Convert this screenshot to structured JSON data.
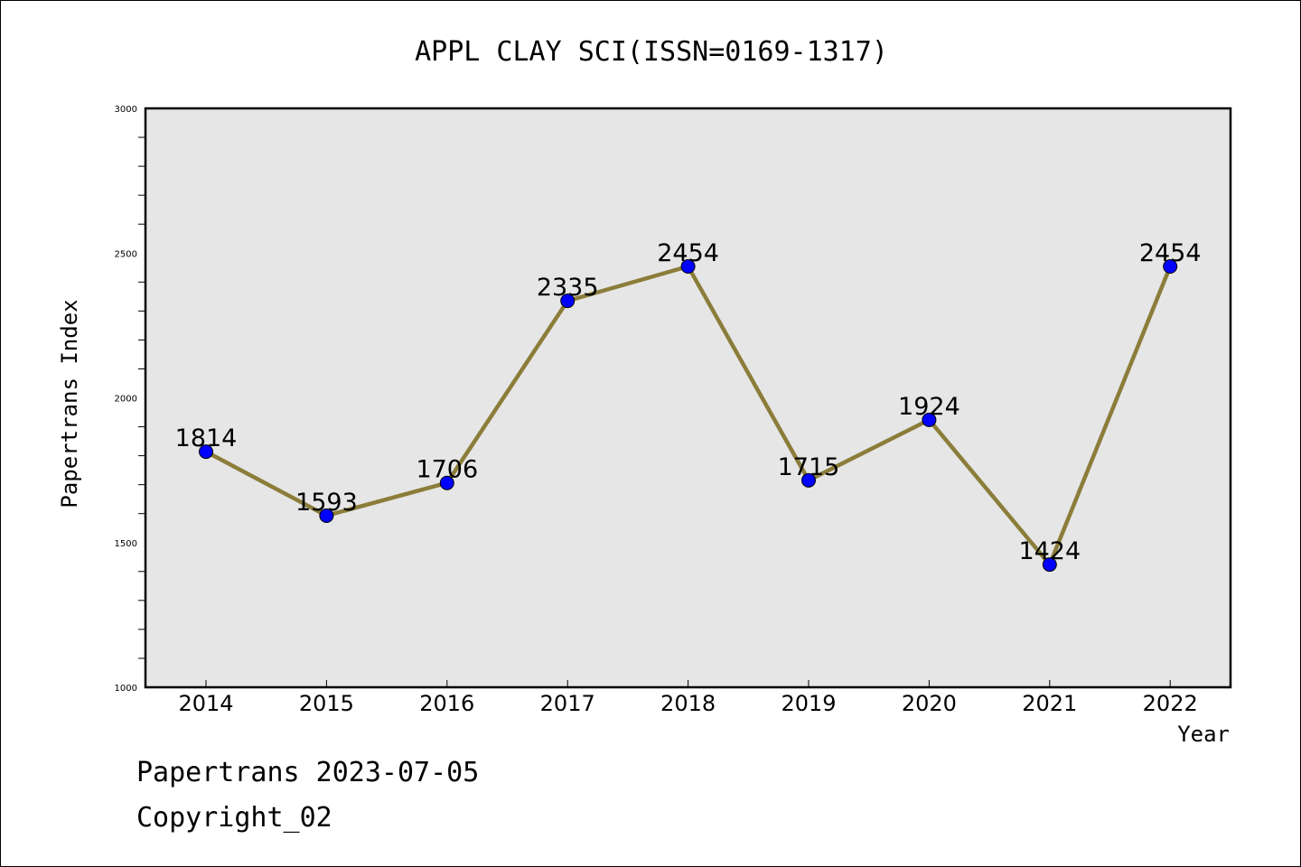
{
  "chart_data": {
    "type": "line",
    "title": "APPL CLAY SCI(ISSN=0169-1317)",
    "xlabel": "Year",
    "ylabel": "Papertrans Index",
    "categories": [
      "2014",
      "2015",
      "2016",
      "2017",
      "2018",
      "2019",
      "2020",
      "2021",
      "2022"
    ],
    "series": [
      {
        "values": [
          1814,
          1593,
          1706,
          2335,
          2454,
          1715,
          1924,
          1424,
          2454
        ]
      }
    ],
    "ylim": [
      1000,
      3000
    ],
    "yticks": [
      "1000",
      "1500",
      "2000",
      "2500",
      "3000"
    ],
    "grid": false,
    "line_color": "#8b7d3a",
    "marker_color": "#0000ff",
    "plot_background": "#e6e6e6"
  },
  "footer": {
    "line1": "Papertrans 2023-07-05",
    "line2": "Copyright_02"
  }
}
